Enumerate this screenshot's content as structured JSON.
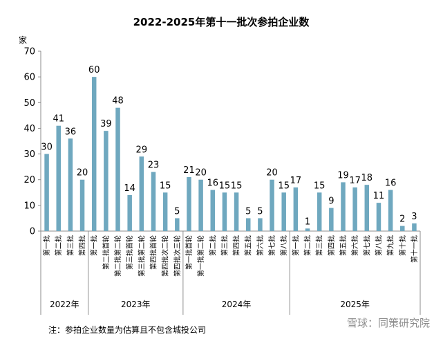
{
  "chart_data": {
    "type": "bar",
    "title": "2022-2025年第十一批次参拍企业数",
    "ylabel": "家",
    "ylim": [
      0,
      70
    ],
    "yticks": [
      0,
      10,
      20,
      30,
      40,
      50,
      60,
      70
    ],
    "grid": false,
    "bar_color": "#6fa8bf",
    "categories": [
      "第一批",
      "第二批",
      "第三批",
      "第四批",
      "第一批",
      "第二批首轮",
      "第二批第二轮",
      "第三批首轮",
      "第三批第二轮",
      "第四批首轮",
      "第四批次二轮",
      "第四批次三轮",
      "第一批首轮",
      "第一批第二轮",
      "第二批",
      "第三批",
      "第四批",
      "第五批",
      "第六批",
      "第七批",
      "第八批",
      "第一批",
      "第二批",
      "第三批",
      "第四批",
      "第五批",
      "第六批",
      "第七批",
      "第八批",
      "第九批",
      "第十批",
      "第十一批"
    ],
    "values": [
      30,
      41,
      36,
      20,
      60,
      39,
      48,
      14,
      29,
      23,
      15,
      5,
      21,
      20,
      16,
      15,
      15,
      5,
      5,
      20,
      15,
      17,
      1,
      15,
      9,
      19,
      17,
      18,
      11,
      16,
      2,
      3
    ],
    "groups": [
      {
        "label": "2022年",
        "count": 4
      },
      {
        "label": "2023年",
        "count": 8
      },
      {
        "label": "2024年",
        "count": 9
      },
      {
        "label": "2025年",
        "count": 11
      }
    ]
  },
  "note": "注：参拍企业数量为估算且不包含城投公司",
  "watermark": "雪球：同策研究院"
}
